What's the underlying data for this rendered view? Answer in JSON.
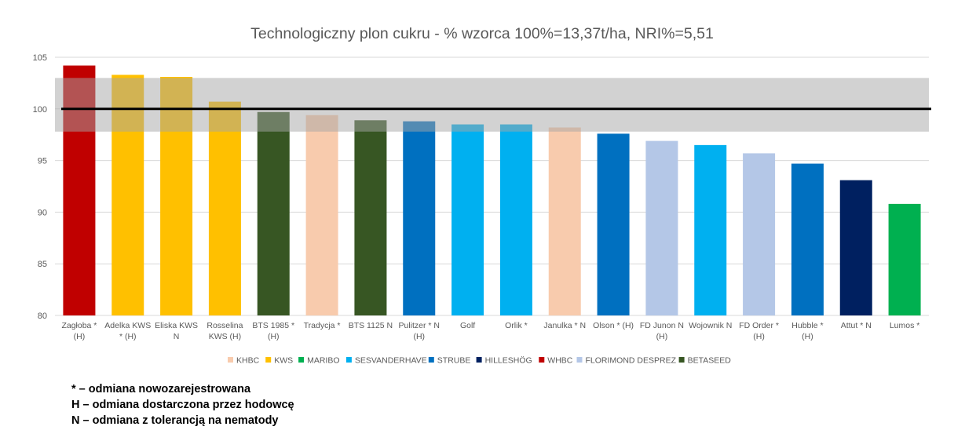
{
  "chart_data": {
    "type": "bar",
    "title": "Technologiczny plon cukru - % wzorca 100%=13,37t/ha, NRI%=5,51",
    "xlabel": "",
    "ylabel": "",
    "ylim": [
      80,
      105
    ],
    "yticks": [
      "80",
      "85",
      "90",
      "95",
      "100",
      "105"
    ],
    "grid": true,
    "legend_position": "bottom",
    "reference_line": 100,
    "nri_band": [
      97.8,
      103
    ],
    "categories": [
      [
        "Zagłoba *",
        "(H)"
      ],
      [
        "Adelka KWS",
        "* (H)"
      ],
      [
        "Eliska KWS",
        "N"
      ],
      [
        "Rosselina",
        "KWS (H)"
      ],
      [
        "BTS 1985 *",
        "(H)"
      ],
      [
        "Tradycja *"
      ],
      [
        "BTS 1125 N"
      ],
      [
        "Pulitzer * N",
        "(H)"
      ],
      [
        "Golf"
      ],
      [
        "Orlik *"
      ],
      [
        "Janulka * N"
      ],
      [
        "Olson * (H)"
      ],
      [
        "FD Junon N",
        "(H)"
      ],
      [
        "Wojownik N"
      ],
      [
        "FD Order *",
        "(H)"
      ],
      [
        "Hubble *",
        "(H)"
      ],
      [
        "Attut * N"
      ],
      [
        "Lumos *"
      ]
    ],
    "values": [
      104.2,
      103.3,
      103.1,
      100.7,
      99.7,
      99.4,
      98.9,
      98.8,
      98.5,
      98.5,
      98.2,
      97.6,
      96.9,
      96.5,
      95.7,
      94.7,
      93.1,
      90.8
    ],
    "companies": [
      "WHBC",
      "KWS",
      "KWS",
      "KWS",
      "BETASEED",
      "KHBC",
      "BETASEED",
      "STRUBE",
      "SESVANDERHAVE",
      "SESVANDERHAVE",
      "KHBC",
      "STRUBE",
      "FLORIMOND DESPREZ",
      "SESVANDERHAVE",
      "FLORIMOND DESPREZ",
      "STRUBE",
      "HILLESHÖG",
      "MARIBO"
    ],
    "legend": [
      {
        "name": "KHBC",
        "color": "#F8CBAD"
      },
      {
        "name": "KWS",
        "color": "#FFC000"
      },
      {
        "name": "MARIBO",
        "color": "#00B050"
      },
      {
        "name": "SESVANDERHAVE",
        "color": "#00B0F0"
      },
      {
        "name": "STRUBE",
        "color": "#0070C0"
      },
      {
        "name": "HILLESHÖG",
        "color": "#002060"
      },
      {
        "name": "WHBC",
        "color": "#C00000"
      },
      {
        "name": "FLORIMOND DESPREZ",
        "color": "#B4C7E7"
      },
      {
        "name": "BETASEED",
        "color": "#375623"
      }
    ]
  },
  "notes": [
    "* – odmiana nowozarejestrowana",
    "H – odmiana dostarczona przez hodowcę",
    "N – odmiana z tolerancją na nematody"
  ]
}
